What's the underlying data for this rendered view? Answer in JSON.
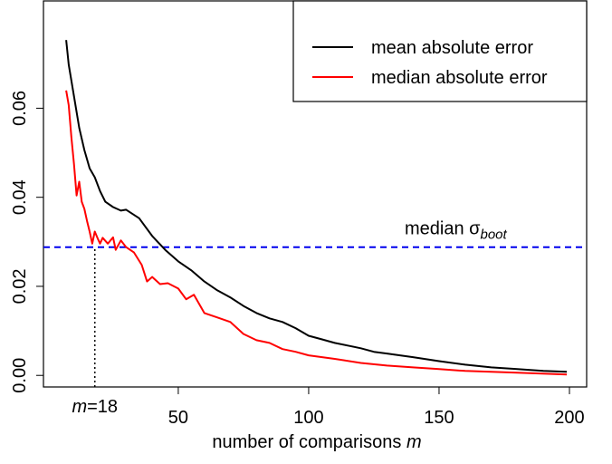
{
  "chart_data": {
    "type": "line",
    "xlabel": "number of comparisons",
    "xlabel_var": "m",
    "xlim": [
      -1.7,
      206.6
    ],
    "xticks": [
      50,
      100,
      150,
      200
    ],
    "ylim": [
      -0.0026,
      0.0841
    ],
    "yticks": [
      {
        "value": 0,
        "label": "0.00"
      },
      0.02,
      0.04,
      0.06
    ],
    "legend": "top-right",
    "series": [
      {
        "name": "mean absolute error",
        "color": "#000000",
        "x": [
          7,
          8,
          10,
          12,
          14,
          16,
          18,
          20,
          22,
          25,
          28,
          30,
          35,
          40,
          45,
          50,
          55,
          60,
          65,
          70,
          75,
          80,
          85,
          90,
          95,
          100,
          105,
          110,
          115,
          120,
          125,
          130,
          140,
          150,
          160,
          170,
          180,
          190,
          199
        ],
        "values": [
          0.0753,
          0.0698,
          0.0627,
          0.0556,
          0.0506,
          0.0465,
          0.0445,
          0.0414,
          0.039,
          0.0378,
          0.037,
          0.0372,
          0.0353,
          0.0313,
          0.0282,
          0.0256,
          0.0236,
          0.0211,
          0.0191,
          0.0175,
          0.0156,
          0.014,
          0.0128,
          0.012,
          0.0106,
          0.0089,
          0.0081,
          0.0073,
          0.0067,
          0.0061,
          0.0053,
          0.0049,
          0.0041,
          0.0032,
          0.0024,
          0.0018,
          0.0014,
          0.001,
          0.0008
        ]
      },
      {
        "name": "median absolute error",
        "color": "#ff0000",
        "x": [
          7,
          8,
          9,
          10,
          11,
          12,
          13,
          14,
          15,
          16,
          17,
          18,
          19,
          20,
          21,
          23,
          25,
          26,
          28,
          30,
          33,
          36,
          38,
          40,
          43,
          46,
          50,
          53,
          56,
          60,
          65,
          70,
          75,
          80,
          85,
          90,
          95,
          100,
          110,
          120,
          130,
          140,
          150,
          160,
          180,
          199
        ],
        "values": [
          0.064,
          0.0607,
          0.0536,
          0.0475,
          0.0404,
          0.0435,
          0.039,
          0.0374,
          0.0347,
          0.0323,
          0.0296,
          0.0323,
          0.0309,
          0.0296,
          0.0309,
          0.0296,
          0.031,
          0.0282,
          0.0303,
          0.0288,
          0.0276,
          0.0248,
          0.0211,
          0.0221,
          0.0205,
          0.0207,
          0.0195,
          0.0171,
          0.0181,
          0.014,
          0.013,
          0.012,
          0.0093,
          0.0079,
          0.0073,
          0.0059,
          0.0053,
          0.0045,
          0.0037,
          0.0028,
          0.0022,
          0.0018,
          0.0014,
          0.001,
          0.0006,
          0.0002
        ]
      }
    ],
    "hline": {
      "value": 0.0288,
      "color": "#0000ee",
      "label": "median σ",
      "label_sub": "boot"
    },
    "vline": {
      "x": 18,
      "label_var": "m",
      "label_rest": "=18"
    }
  }
}
